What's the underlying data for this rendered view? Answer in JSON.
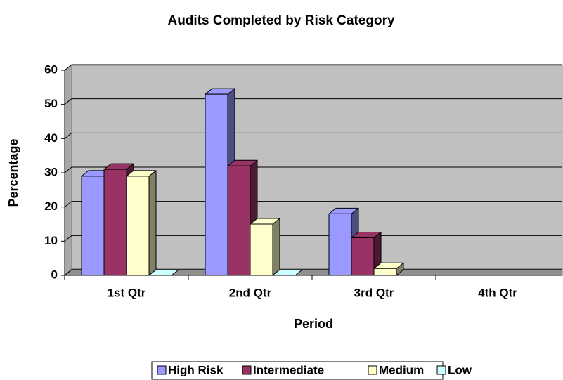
{
  "chart_data": {
    "type": "bar3d",
    "title": "Audits Completed by Risk Category",
    "x_label": "Period",
    "y_label": "Percentage",
    "categories": [
      "1st Qtr",
      "2nd Qtr",
      "3rd Qtr",
      "4th Qtr"
    ],
    "series": [
      {
        "name": "High Risk",
        "color": "#9999ff",
        "values": [
          29,
          53,
          18,
          null
        ]
      },
      {
        "name": "Intermediate",
        "color": "#993366",
        "values": [
          31,
          32,
          11,
          null
        ]
      },
      {
        "name": "Medium",
        "color": "#ffffcc",
        "values": [
          29,
          15,
          2,
          null
        ]
      },
      {
        "name": "Low",
        "color": "#ccffff",
        "values": [
          0,
          0,
          null,
          null
        ]
      }
    ],
    "ylim": [
      0,
      60
    ],
    "yticks": [
      0,
      10,
      20,
      30,
      40,
      50,
      60
    ],
    "grid": true,
    "legend": "bottom"
  }
}
